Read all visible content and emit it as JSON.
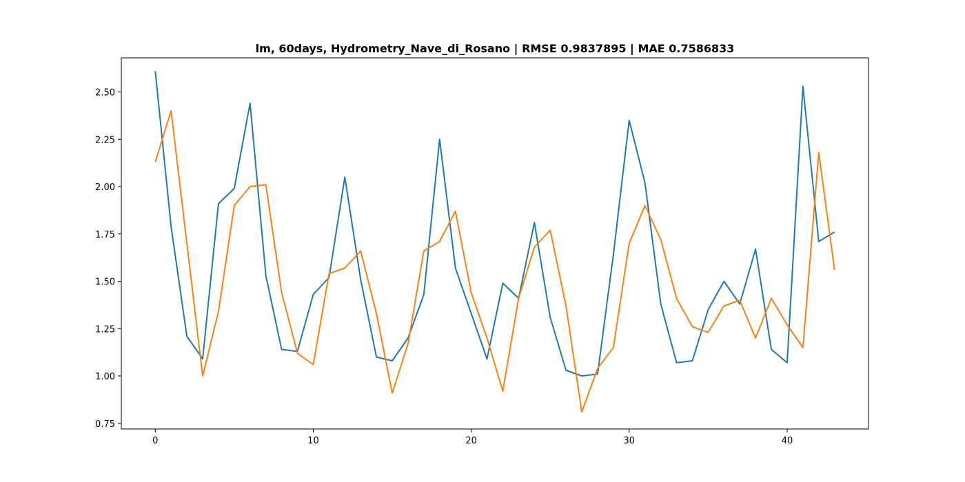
{
  "chart_data": {
    "type": "line",
    "title": "lm, 60days, Hydrometry_Nave_di_Rosano | RMSE 0.9837895 | MAE 0.7586833",
    "xlabel": "",
    "ylabel": "",
    "xlim": [
      -2.15,
      45.15
    ],
    "ylim": [
      0.72,
      2.68
    ],
    "xticks": [
      0,
      10,
      20,
      30,
      40
    ],
    "xtick_labels": [
      "0",
      "10",
      "20",
      "30",
      "40"
    ],
    "yticks": [
      0.75,
      1.0,
      1.25,
      1.5,
      1.75,
      2.0,
      2.25,
      2.5
    ],
    "ytick_labels": [
      "0.75",
      "1.00",
      "1.25",
      "1.50",
      "1.75",
      "2.00",
      "2.25",
      "2.50"
    ],
    "grid": false,
    "legend": "none",
    "x": [
      0,
      1,
      2,
      3,
      4,
      5,
      6,
      7,
      8,
      9,
      10,
      11,
      12,
      13,
      14,
      15,
      16,
      17,
      18,
      19,
      20,
      21,
      22,
      23,
      24,
      25,
      26,
      27,
      28,
      29,
      30,
      31,
      32,
      33,
      34,
      35,
      36,
      37,
      38,
      39,
      40,
      41,
      42,
      43
    ],
    "series": [
      {
        "color": "#1f77b4",
        "values": [
          2.61,
          1.79,
          1.21,
          1.09,
          1.91,
          1.99,
          2.44,
          1.53,
          1.14,
          1.13,
          1.43,
          1.52,
          2.05,
          1.51,
          1.1,
          1.08,
          1.2,
          1.43,
          2.25,
          1.57,
          1.33,
          1.09,
          1.49,
          1.41,
          1.81,
          1.31,
          1.03,
          1.0,
          1.01,
          1.64,
          2.35,
          2.02,
          1.38,
          1.07,
          1.08,
          1.35,
          1.5,
          1.38,
          1.67,
          1.14,
          1.07,
          2.53,
          1.71,
          1.76
        ]
      },
      {
        "color": "#ff7f0e",
        "values": [
          2.13,
          2.4,
          1.7,
          1.0,
          1.34,
          1.9,
          2.0,
          2.01,
          1.44,
          1.12,
          1.06,
          1.54,
          1.57,
          1.66,
          1.33,
          0.91,
          1.17,
          1.66,
          1.71,
          1.87,
          1.44,
          1.2,
          0.92,
          1.41,
          1.68,
          1.77,
          1.37,
          0.81,
          1.04,
          1.15,
          1.7,
          1.9,
          1.72,
          1.41,
          1.26,
          1.23,
          1.37,
          1.4,
          1.2,
          1.41,
          1.27,
          1.15,
          2.18,
          1.56
        ]
      }
    ]
  }
}
